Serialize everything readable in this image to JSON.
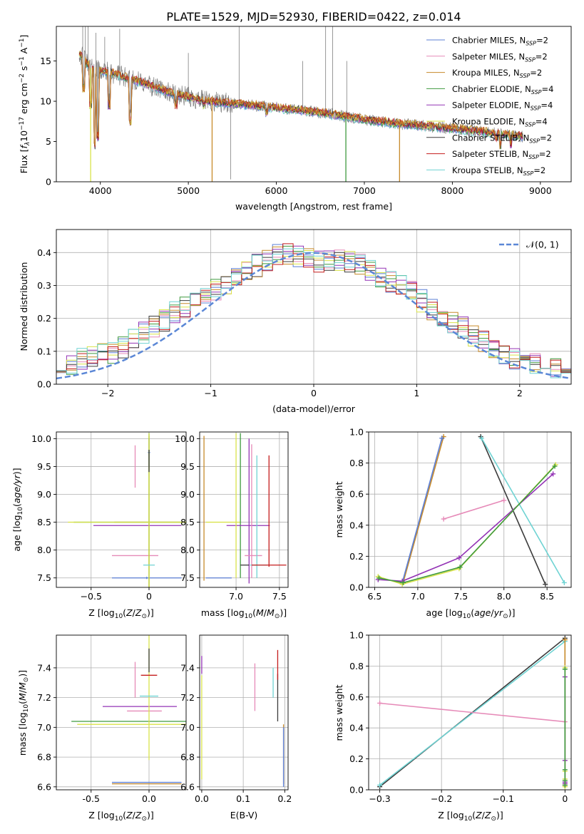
{
  "title": "PLATE=1529, MJD=52930, FIBERID=0422, z=0.014",
  "colors": {
    "Chabrier MILES": "#5b7fd6",
    "Salpeter MILES": "#e68ab8",
    "Kroupa MILES": "#c78a2a",
    "Chabrier ELODIE": "#3f9a3f",
    "Salpeter ELODIE": "#9333b5",
    "Kroupa ELODIE": "#d9e34a",
    "Chabrier STELIB": "#3c3c3c",
    "Salpeter STELIB": "#c41d1d",
    "Kroupa STELIB": "#6fd3d3",
    "data": "#7f7f7f"
  },
  "chart_data": [
    {
      "id": "spectrum",
      "type": "line",
      "xlabel": "wavelength [Angstrom, rest frame]",
      "ylabel": "Flux [f_λ 10^-17 erg cm^-2 s^-1 A^-1]",
      "xlim": [
        3500,
        9350
      ],
      "ylim": [
        0,
        19.3
      ],
      "xticks": [
        4000,
        5000,
        6000,
        7000,
        8000,
        9000
      ],
      "yticks": [
        0,
        5,
        10,
        15
      ],
      "grid": false,
      "legend_position": "top-right",
      "legend": [
        {
          "base": "Chabrier MILES, N",
          "sub": "SSP",
          "tail": "=2"
        },
        {
          "base": "Salpeter MILES, N",
          "sub": "SSP",
          "tail": "=2"
        },
        {
          "base": "Kroupa MILES, N",
          "sub": "SSP",
          "tail": "=2"
        },
        {
          "base": "Chabrier ELODIE, N",
          "sub": "SSP",
          "tail": "=4"
        },
        {
          "base": "Salpeter ELODIE, N",
          "sub": "SSP",
          "tail": "=4"
        },
        {
          "base": "Kroupa ELODIE, N",
          "sub": "SSP",
          "tail": "=4"
        },
        {
          "base": "Chabrier STELIB, N",
          "sub": "SSP",
          "tail": "=2"
        },
        {
          "base": "Salpeter STELIB, N",
          "sub": "SSP",
          "tail": "=2"
        },
        {
          "base": "Kroupa STELIB, N",
          "sub": "SSP",
          "tail": "=2"
        }
      ],
      "continuum": [
        [
          3760,
          16
        ],
        [
          3900,
          14
        ],
        [
          4100,
          13.6
        ],
        [
          4400,
          12.6
        ],
        [
          4800,
          11
        ],
        [
          5200,
          10
        ],
        [
          5600,
          9.6
        ],
        [
          6000,
          9.2
        ],
        [
          6500,
          8.6
        ],
        [
          7000,
          7.7
        ],
        [
          7500,
          7.1
        ],
        [
          8000,
          6.6
        ],
        [
          8500,
          6.0
        ],
        [
          8800,
          5.6
        ]
      ],
      "model_dips": [
        [
          3810,
          11
        ],
        [
          3890,
          9
        ],
        [
          3935,
          4
        ],
        [
          3970,
          5
        ],
        [
          4101,
          9
        ],
        [
          4340,
          7
        ],
        [
          4861,
          9
        ],
        [
          5175,
          9
        ],
        [
          5890,
          8
        ],
        [
          8500,
          5
        ],
        [
          8542,
          4
        ],
        [
          8662,
          4
        ]
      ],
      "model_spikes": [
        [
          3890,
          0
        ],
        [
          5270,
          0
        ],
        [
          6790,
          0
        ],
        [
          7400,
          0
        ]
      ],
      "data_emission": [
        [
          3800,
          19.3
        ],
        [
          3830,
          19.3
        ],
        [
          3860,
          19.3
        ],
        [
          3950,
          18.5
        ],
        [
          4050,
          18
        ],
        [
          4220,
          19
        ],
        [
          5000,
          16
        ],
        [
          5480,
          0.3
        ],
        [
          5577,
          19.3
        ],
        [
          6300,
          15
        ],
        [
          6560,
          19.3
        ],
        [
          6640,
          19.3
        ],
        [
          6800,
          15
        ]
      ]
    },
    {
      "id": "residual-distribution",
      "type": "line",
      "xlabel": "(data-model)/error",
      "ylabel": "Normed distribution",
      "xlim": [
        -2.5,
        2.5
      ],
      "ylim": [
        0,
        0.47
      ],
      "xticks": [
        -2,
        -1,
        0,
        1,
        2
      ],
      "yticks": [
        0.0,
        0.1,
        0.2,
        0.3,
        0.4
      ],
      "grid": true,
      "legend_position": "top-right",
      "legend": [
        {
          "label": "𝒩(0, 1)"
        }
      ],
      "reference_curve": "standard normal pdf",
      "histogram_envelope": [
        [
          -2.45,
          0.04
        ],
        [
          -2.3,
          0.07
        ],
        [
          -2.1,
          0.09
        ],
        [
          -1.9,
          0.1
        ],
        [
          -1.7,
          0.15
        ],
        [
          -1.5,
          0.18
        ],
        [
          -1.3,
          0.23
        ],
        [
          -1.1,
          0.26
        ],
        [
          -0.9,
          0.3
        ],
        [
          -0.7,
          0.33
        ],
        [
          -0.5,
          0.37
        ],
        [
          -0.3,
          0.4
        ],
        [
          -0.1,
          0.38
        ],
        [
          0.1,
          0.37
        ],
        [
          0.3,
          0.38
        ],
        [
          0.5,
          0.36
        ],
        [
          0.7,
          0.32
        ],
        [
          0.9,
          0.29
        ],
        [
          1.1,
          0.24
        ],
        [
          1.3,
          0.2
        ],
        [
          1.5,
          0.16
        ],
        [
          1.7,
          0.12
        ],
        [
          1.9,
          0.08
        ],
        [
          2.1,
          0.07
        ],
        [
          2.3,
          0.05
        ],
        [
          2.5,
          0.04
        ]
      ]
    },
    {
      "id": "age-vs-metallicity",
      "type": "scatter",
      "xlabel": "Z [log10(Z/Z⊙)]",
      "ylabel": "age  [log10(age/yr)]",
      "xlim": [
        -0.8,
        0.32
      ],
      "ylim": [
        7.33,
        10.12
      ],
      "xticks": [
        -0.5,
        0.0
      ],
      "yticks": [
        7.5,
        8.0,
        8.5,
        9.0,
        9.5,
        10.0
      ],
      "grid": true,
      "points": [
        {
          "model": "Chabrier MILES",
          "x": 0.0,
          "y": 9.75,
          "xerr": 0.01,
          "yerr": 0.25
        },
        {
          "model": "Chabrier MILES",
          "x": -0.02,
          "y": 7.5,
          "xerr": 0.3,
          "yerr": 0.02
        },
        {
          "model": "Salpeter MILES",
          "x": -0.12,
          "y": 7.9,
          "xerr": 0.2,
          "yerr": 0.0
        },
        {
          "model": "Salpeter MILES",
          "x": -0.12,
          "y": 9.5,
          "xerr": 0.0,
          "yerr": 0.38
        },
        {
          "model": "Kroupa MILES",
          "x": 0.0,
          "y": 8.5,
          "xerr": 0.3,
          "yerr": 1.55
        },
        {
          "model": "Chabrier ELODIE",
          "x": 0.0,
          "y": 8.5,
          "xerr": 0.65,
          "yerr": 1.6
        },
        {
          "model": "Salpeter ELODIE",
          "x": -0.1,
          "y": 8.44,
          "xerr": 0.38,
          "yerr": 0.0
        },
        {
          "model": "Kroupa ELODIE",
          "x": 0.0,
          "y": 8.5,
          "xerr": 0.7,
          "yerr": 1.6
        },
        {
          "model": "Chabrier STELIB",
          "x": 0.0,
          "y": 9.6,
          "xerr": 0.0,
          "yerr": 0.2
        },
        {
          "model": "Kroupa STELIB",
          "x": 0.0,
          "y": 7.73,
          "xerr": 0.05,
          "yerr": 0.0
        }
      ]
    },
    {
      "id": "age-vs-mass",
      "type": "scatter",
      "xlabel": "mass [log10(M/M⊙)]",
      "ylabel": "",
      "xlim": [
        6.58,
        7.6
      ],
      "ylim": [
        7.33,
        10.12
      ],
      "xticks": [
        7.0,
        7.5
      ],
      "yticks": [
        7.5,
        8.0,
        8.5,
        9.0,
        9.5,
        10.0
      ],
      "grid": true,
      "points": [
        {
          "model": "Chabrier MILES",
          "x": 6.8,
          "y": 7.5,
          "xerr": 0.15,
          "yerr": 0.0
        },
        {
          "model": "Kroupa MILES",
          "x": 6.63,
          "y": 8.75,
          "xerr": 0.0,
          "yerr": 1.3
        },
        {
          "model": "Kroupa ELODIE",
          "x": 6.85,
          "y": 8.5,
          "xerr": 0.2,
          "yerr": 0.0
        },
        {
          "model": "Chabrier ELODIE",
          "x": 7.05,
          "y": 8.8,
          "xerr": 0.0,
          "yerr": 1.3
        },
        {
          "model": "Salpeter ELODIE",
          "x": 7.15,
          "y": 8.7,
          "xerr": 0.0,
          "yerr": 1.3
        },
        {
          "model": "Salpeter ELODIE",
          "x": 7.14,
          "y": 8.44,
          "xerr": 0.25,
          "yerr": 0.0
        },
        {
          "model": "Kroupa ELODIE",
          "x": 7.0,
          "y": 8.8,
          "xerr": 0.0,
          "yerr": 1.3
        },
        {
          "model": "Salpeter MILES",
          "x": 7.18,
          "y": 8.7,
          "xerr": 0.0,
          "yerr": 1.2
        },
        {
          "model": "Salpeter MILES",
          "x": 7.2,
          "y": 7.9,
          "xerr": 0.1,
          "yerr": 0.0
        },
        {
          "model": "Kroupa STELIB",
          "x": 7.24,
          "y": 8.6,
          "xerr": 0.0,
          "yerr": 1.1
        },
        {
          "model": "Kroupa STELIB",
          "x": 7.26,
          "y": 7.73,
          "xerr": 0.1,
          "yerr": 0.0
        },
        {
          "model": "Salpeter STELIB",
          "x": 7.38,
          "y": 8.7,
          "xerr": 0.0,
          "yerr": 1.0
        },
        {
          "model": "Salpeter STELIB",
          "x": 7.38,
          "y": 7.73,
          "xerr": 0.2,
          "yerr": 0.0
        },
        {
          "model": "Chabrier STELIB",
          "x": 7.1,
          "y": 7.73,
          "xerr": 0.05,
          "yerr": 0.0
        }
      ]
    },
    {
      "id": "mass-weight-vs-age",
      "type": "line",
      "xlabel": "age  [log10(age/yr)]",
      "ylabel": "mass weight",
      "xlim": [
        6.43,
        8.78
      ],
      "ylim": [
        0,
        1.0
      ],
      "xticks": [
        6.5,
        7.0,
        7.5,
        8.0,
        8.5
      ],
      "yticks": [
        0.0,
        0.2,
        0.4,
        0.6,
        0.8,
        1.0
      ],
      "grid": true,
      "series": [
        {
          "model": "Kroupa MILES",
          "x": [
            6.83,
            7.3
          ],
          "y": [
            0.03,
            0.97
          ]
        },
        {
          "model": "Chabrier MILES",
          "x": [
            6.82,
            7.28
          ],
          "y": [
            0.03,
            0.96
          ]
        },
        {
          "model": "Salpeter MILES",
          "x": [
            7.3,
            8.0
          ],
          "y": [
            0.44,
            0.56
          ]
        },
        {
          "model": "Chabrier STELIB",
          "x": [
            7.73,
            8.48
          ],
          "y": [
            0.97,
            0.02
          ]
        },
        {
          "model": "Kroupa STELIB",
          "x": [
            7.74,
            8.7
          ],
          "y": [
            0.96,
            0.03
          ]
        },
        {
          "model": "Salpeter ELODIE",
          "x": [
            6.54,
            6.82,
            7.48,
            8.57
          ],
          "y": [
            0.05,
            0.04,
            0.19,
            0.73
          ]
        },
        {
          "model": "Kroupa ELODIE",
          "x": [
            6.54,
            6.82,
            7.48,
            8.6
          ],
          "y": [
            0.07,
            0.02,
            0.12,
            0.79
          ]
        },
        {
          "model": "Chabrier ELODIE",
          "x": [
            6.55,
            6.83,
            7.49,
            8.59
          ],
          "y": [
            0.06,
            0.03,
            0.13,
            0.78
          ]
        }
      ]
    },
    {
      "id": "mass-vs-metallicity",
      "type": "scatter",
      "xlabel": "Z [log10(Z/Z⊙)]",
      "ylabel": "mass [log10(M/M⊙)]",
      "xlim": [
        -0.8,
        0.32
      ],
      "ylim": [
        6.58,
        7.62
      ],
      "xticks": [
        -0.5,
        0.0
      ],
      "yticks": [
        6.6,
        6.8,
        7.0,
        7.2,
        7.4
      ],
      "grid": true,
      "points": [
        {
          "model": "Chabrier MILES",
          "x": -0.02,
          "y": 6.63,
          "xerr": 0.3,
          "yerr": 0.0
        },
        {
          "model": "Kroupa MILES",
          "x": -0.02,
          "y": 6.62,
          "xerr": 0.3,
          "yerr": 0.0
        },
        {
          "model": "Salpeter MILES",
          "x": -0.12,
          "y": 7.32,
          "xerr": 0.0,
          "yerr": 0.12
        },
        {
          "model": "Salpeter MILES",
          "x": -0.04,
          "y": 7.11,
          "xerr": 0.15,
          "yerr": 0.0
        },
        {
          "model": "Chabrier ELODIE",
          "x": -0.02,
          "y": 7.04,
          "xerr": 0.65,
          "yerr": 0.0
        },
        {
          "model": "Kroupa ELODIE",
          "x": -0.02,
          "y": 7.02,
          "xerr": 0.6,
          "yerr": 0.0
        },
        {
          "model": "Salpeter ELODIE",
          "x": -0.08,
          "y": 7.14,
          "xerr": 0.32,
          "yerr": 0.0
        },
        {
          "model": "Kroupa ELODIE",
          "x": 0.0,
          "y": 7.2,
          "xerr": 0.0,
          "yerr": 0.42
        },
        {
          "model": "Kroupa STELIB",
          "x": 0.0,
          "y": 7.21,
          "xerr": 0.08,
          "yerr": 0.0
        },
        {
          "model": "Salpeter STELIB",
          "x": 0.0,
          "y": 7.35,
          "xerr": 0.07,
          "yerr": 0.0
        },
        {
          "model": "Chabrier STELIB",
          "x": 0.0,
          "y": 7.45,
          "xerr": 0.0,
          "yerr": 0.08
        }
      ]
    },
    {
      "id": "mass-vs-extinction",
      "type": "scatter",
      "xlabel": "E(B-V)",
      "ylabel": "",
      "xlim": [
        -0.005,
        0.208
      ],
      "ylim": [
        6.58,
        7.62
      ],
      "xticks": [
        0.0,
        0.1,
        0.2
      ],
      "yticks": [
        6.6,
        6.8,
        7.0,
        7.2,
        7.4
      ],
      "grid": true,
      "points": [
        {
          "model": "Salpeter ELODIE",
          "x": 0.0,
          "y": 7.42,
          "xerr": 0.0,
          "yerr": 0.06
        },
        {
          "model": "Kroupa ELODIE",
          "x": 0.0,
          "y": 7.0,
          "xerr": 0.0,
          "yerr": 0.35
        },
        {
          "model": "Salpeter MILES",
          "x": 0.128,
          "y": 7.27,
          "xerr": 0.0,
          "yerr": 0.16
        },
        {
          "model": "Kroupa STELIB",
          "x": 0.172,
          "y": 7.3,
          "xerr": 0.0,
          "yerr": 0.1
        },
        {
          "model": "Chabrier STELIB",
          "x": 0.183,
          "y": 7.2,
          "xerr": 0.0,
          "yerr": 0.16
        },
        {
          "model": "Salpeter STELIB",
          "x": 0.183,
          "y": 7.42,
          "xerr": 0.0,
          "yerr": 0.1
        },
        {
          "model": "Kroupa MILES",
          "x": 0.197,
          "y": 6.82,
          "xerr": 0.0,
          "yerr": 0.2
        },
        {
          "model": "Chabrier MILES",
          "x": 0.197,
          "y": 6.8,
          "xerr": 0.0,
          "yerr": 0.2
        }
      ]
    },
    {
      "id": "mass-weight-vs-metallicity",
      "type": "line",
      "xlabel": "Z [log10(Z/Z⊙)]",
      "ylabel": "mass weight",
      "xlim": [
        -0.318,
        0.01
      ],
      "ylim": [
        0,
        1.0
      ],
      "xticks": [
        -0.3,
        -0.2,
        -0.1,
        0.0
      ],
      "yticks": [
        0.0,
        0.2,
        0.4,
        0.6,
        0.8,
        1.0
      ],
      "grid": true,
      "series": [
        {
          "model": "Chabrier STELIB",
          "x": [
            -0.3,
            0.0
          ],
          "y": [
            0.02,
            0.98
          ]
        },
        {
          "model": "Kroupa STELIB",
          "x": [
            -0.3,
            0.0
          ],
          "y": [
            0.03,
            0.96
          ]
        },
        {
          "model": "Salpeter MILES",
          "x": [
            -0.3,
            0.0
          ],
          "y": [
            0.56,
            0.44
          ]
        },
        {
          "model": "Kroupa MILES",
          "x": [
            0.0,
            0.0
          ],
          "y": [
            0.03,
            0.97
          ]
        },
        {
          "model": "Kroupa ELODIE",
          "x": [
            0.0,
            0.0,
            0.0,
            0.0
          ],
          "y": [
            0.07,
            0.02,
            0.12,
            0.79
          ]
        },
        {
          "model": "Salpeter ELODIE",
          "x": [
            0.0,
            0.0,
            0.0,
            0.0
          ],
          "y": [
            0.05,
            0.04,
            0.19,
            0.73
          ]
        },
        {
          "model": "Chabrier ELODIE",
          "x": [
            0.0,
            0.0,
            0.0,
            0.0
          ],
          "y": [
            0.06,
            0.03,
            0.13,
            0.78
          ]
        }
      ]
    }
  ]
}
